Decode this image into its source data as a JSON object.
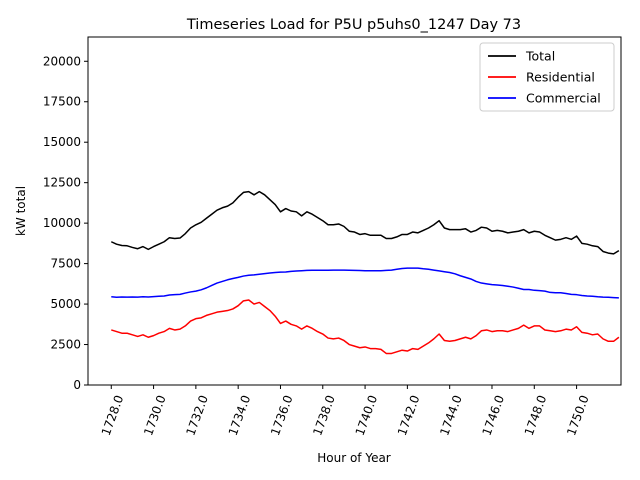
{
  "chart_data": {
    "type": "line",
    "title": "Timeseries Load for P5U p5uhs0_1247  Day 73",
    "xlabel": "Hour of Year",
    "ylabel": "kW total",
    "xlim": [
      1726.9,
      1752.1
    ],
    "ylim": [
      0,
      21500
    ],
    "xticks": [
      1728,
      1730,
      1732,
      1734,
      1736,
      1738,
      1740,
      1742,
      1744,
      1746,
      1748,
      1750
    ],
    "xtick_labels": [
      "1728.0",
      "1730.0",
      "1732.0",
      "1734.0",
      "1736.0",
      "1738.0",
      "1740.0",
      "1742.0",
      "1744.0",
      "1746.0",
      "1748.0",
      "1750.0"
    ],
    "yticks": [
      0,
      2500,
      5000,
      7500,
      10000,
      12500,
      15000,
      17500,
      20000
    ],
    "ytick_labels": [
      "0",
      "2500",
      "5000",
      "7500",
      "10000",
      "12500",
      "15000",
      "17500",
      "20000"
    ],
    "grid": false,
    "legend_position": "top-right",
    "x_start": 1728,
    "x_step": 0.25,
    "series": [
      {
        "name": "Total",
        "color": "#000000",
        "values": [
          8850,
          8700,
          8620,
          8600,
          8500,
          8420,
          8550,
          8380,
          8550,
          8700,
          8850,
          9100,
          9050,
          9080,
          9350,
          9700,
          9900,
          10050,
          10300,
          10550,
          10800,
          10950,
          11050,
          11250,
          11600,
          11900,
          11950,
          11750,
          11950,
          11750,
          11450,
          11150,
          10700,
          10900,
          10750,
          10700,
          10450,
          10700,
          10550,
          10350,
          10150,
          9900,
          9900,
          9950,
          9800,
          9500,
          9450,
          9300,
          9350,
          9250,
          9250,
          9250,
          9050,
          9050,
          9150,
          9300,
          9300,
          9450,
          9400,
          9550,
          9700,
          9900,
          10150,
          9700,
          9600,
          9600,
          9600,
          9650,
          9450,
          9550,
          9750,
          9700,
          9500,
          9550,
          9500,
          9400,
          9450,
          9500,
          9600,
          9400,
          9500,
          9450,
          9250,
          9100,
          8950,
          9000,
          9100,
          9000,
          9200,
          8750,
          8700,
          8600,
          8550,
          8250,
          8150,
          8100,
          8300
        ]
      },
      {
        "name": "Residential",
        "color": "#ff0000",
        "values": [
          3400,
          3300,
          3200,
          3200,
          3100,
          3000,
          3100,
          2950,
          3050,
          3200,
          3300,
          3500,
          3400,
          3450,
          3650,
          3950,
          4100,
          4150,
          4300,
          4400,
          4500,
          4550,
          4600,
          4700,
          4900,
          5200,
          5250,
          5000,
          5100,
          4850,
          4600,
          4250,
          3800,
          3950,
          3750,
          3650,
          3450,
          3650,
          3500,
          3300,
          3150,
          2900,
          2850,
          2900,
          2750,
          2500,
          2400,
          2300,
          2350,
          2250,
          2250,
          2200,
          1950,
          1950,
          2050,
          2150,
          2100,
          2250,
          2200,
          2400,
          2600,
          2850,
          3150,
          2750,
          2700,
          2750,
          2850,
          2950,
          2850,
          3050,
          3350,
          3400,
          3300,
          3350,
          3350,
          3300,
          3400,
          3500,
          3700,
          3500,
          3650,
          3650,
          3400,
          3350,
          3300,
          3350,
          3450,
          3400,
          3600,
          3250,
          3200,
          3100,
          3150,
          2850,
          2700,
          2700,
          2950
        ]
      },
      {
        "name": "Commercial",
        "color": "#0000ff",
        "values": [
          5450,
          5420,
          5440,
          5430,
          5440,
          5430,
          5450,
          5440,
          5460,
          5480,
          5500,
          5560,
          5580,
          5600,
          5680,
          5750,
          5800,
          5880,
          6000,
          6150,
          6300,
          6400,
          6500,
          6580,
          6650,
          6730,
          6780,
          6800,
          6840,
          6880,
          6920,
          6950,
          6970,
          6980,
          7020,
          7040,
          7060,
          7080,
          7090,
          7090,
          7090,
          7090,
          7100,
          7100,
          7100,
          7090,
          7080,
          7070,
          7060,
          7060,
          7060,
          7060,
          7080,
          7100,
          7150,
          7200,
          7220,
          7220,
          7220,
          7180,
          7150,
          7100,
          7050,
          7000,
          6950,
          6870,
          6750,
          6650,
          6550,
          6400,
          6300,
          6250,
          6200,
          6180,
          6150,
          6100,
          6050,
          5980,
          5900,
          5900,
          5850,
          5830,
          5800,
          5720,
          5700,
          5700,
          5650,
          5600,
          5580,
          5530,
          5500,
          5480,
          5450,
          5430,
          5420,
          5400,
          5380
        ]
      }
    ]
  }
}
